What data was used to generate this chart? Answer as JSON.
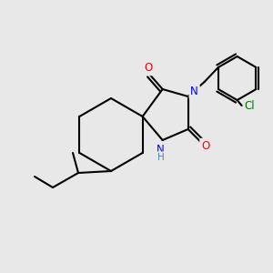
{
  "background_color": "#e8e8e8",
  "bond_color": "#000000",
  "bond_width": 1.5,
  "atom_colors": {
    "N": "#0000ff",
    "O": "#ff0000",
    "Cl": "#007700",
    "C": "#000000",
    "H": "#4488aa"
  },
  "figsize": [
    3.0,
    3.0
  ],
  "dpi": 100,
  "xlim": [
    0,
    300
  ],
  "ylim": [
    0,
    300
  ]
}
